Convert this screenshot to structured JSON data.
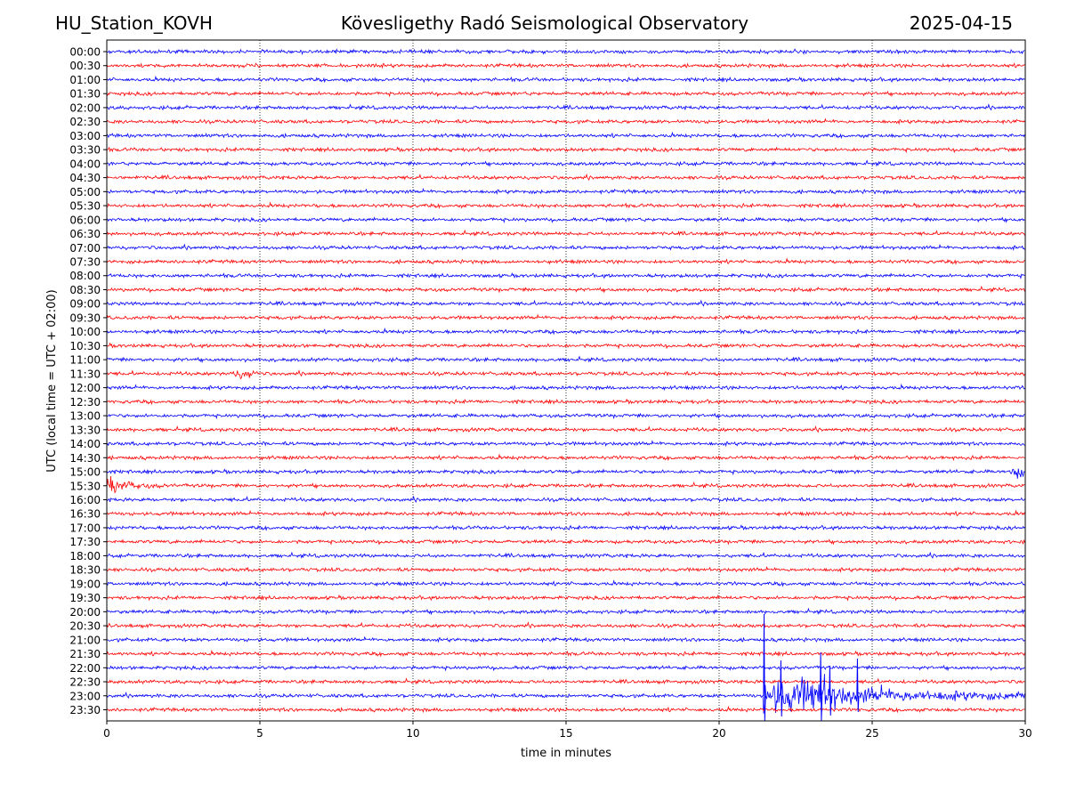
{
  "header": {
    "station": "HU_Station_KOVH",
    "observatory": "Kövesligethy Radó Seismological Observatory",
    "date": "2025-04-15"
  },
  "chart_data": {
    "type": "line",
    "xlabel": "time in minutes",
    "ylabel": "UTC (local time = UTC + 02:00)",
    "xlim": [
      0,
      30
    ],
    "xticks": [
      "0",
      "5",
      "10",
      "15",
      "20",
      "25",
      "30"
    ],
    "grid": "vertical dotted lines at x = 5, 10, 15, 20, 25",
    "row_labels": [
      "00:00",
      "00:30",
      "01:00",
      "01:30",
      "02:00",
      "02:30",
      "03:00",
      "03:30",
      "04:00",
      "04:30",
      "05:00",
      "05:30",
      "06:00",
      "06:30",
      "07:00",
      "07:30",
      "08:00",
      "08:30",
      "09:00",
      "09:30",
      "10:00",
      "10:30",
      "11:00",
      "11:30",
      "12:00",
      "12:30",
      "13:00",
      "13:30",
      "14:00",
      "14:30",
      "15:00",
      "15:30",
      "16:00",
      "16:30",
      "17:00",
      "17:30",
      "18:00",
      "18:30",
      "19:00",
      "19:30",
      "20:00",
      "20:30",
      "21:00",
      "21:30",
      "22:00",
      "22:30",
      "23:00",
      "23:30"
    ],
    "row_colors": [
      "#0000ff",
      "#ff0000"
    ],
    "events": [
      {
        "row": "15:00",
        "start_min": 29.5,
        "end_min": 30,
        "amplitude": "moderate"
      },
      {
        "row": "15:30",
        "start_min": 0,
        "end_min": 2.0,
        "amplitude": "moderate, decaying"
      },
      {
        "row": "11:30",
        "start_min": 4.0,
        "end_min": 5.0,
        "amplitude": "small"
      },
      {
        "row": "23:00",
        "start_min": 21.45,
        "end_min": 30,
        "amplitude": "large, decaying coda"
      }
    ]
  }
}
